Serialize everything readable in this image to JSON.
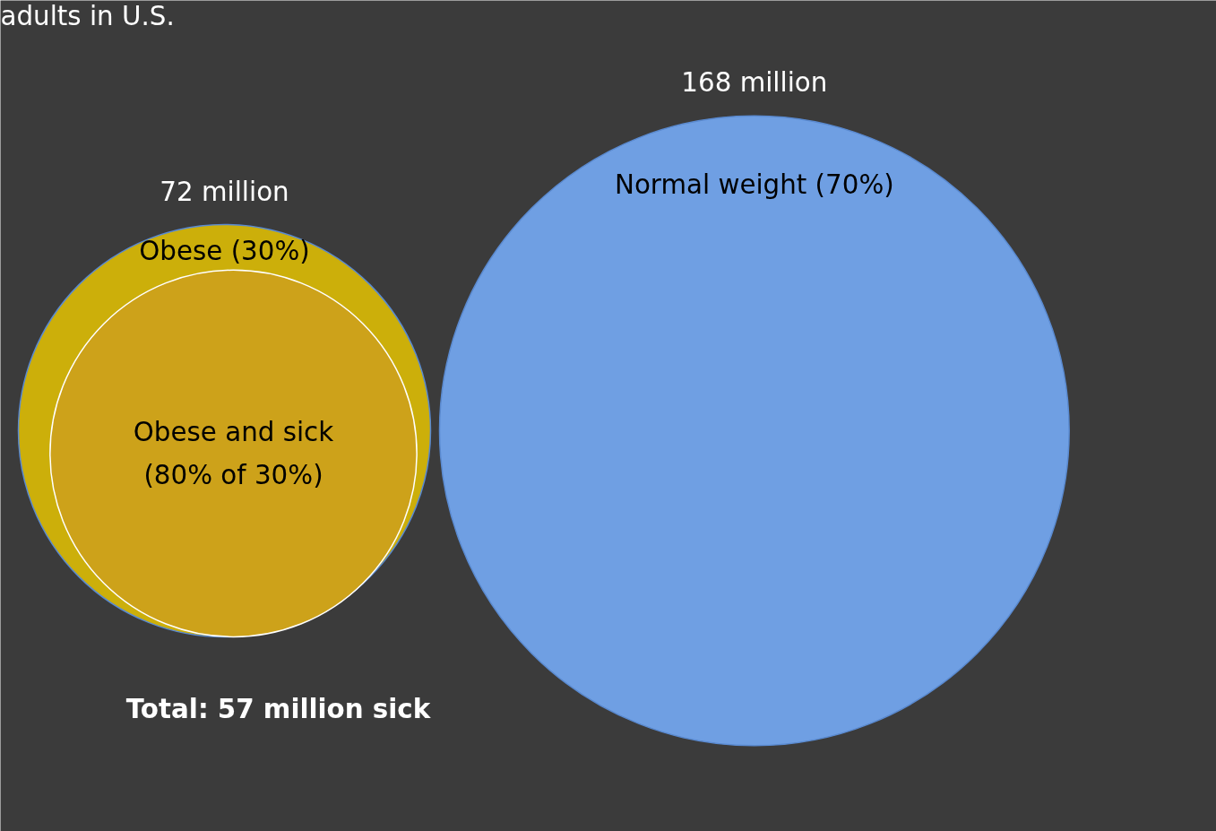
{
  "chart_data": {
    "type": "other",
    "title": "adults in U.S.",
    "categories": [
      "Obese (30%)",
      "Normal weight (70%)",
      "Obese and sick\n(80% of 30%)"
    ],
    "values": [
      72,
      168,
      57
    ],
    "value_labels": [
      "72 million",
      "168 million",
      "Total: 57 million sick"
    ],
    "colors": [
      "#ccaf0a",
      "#6f9fe3",
      "#cda21a"
    ]
  }
}
